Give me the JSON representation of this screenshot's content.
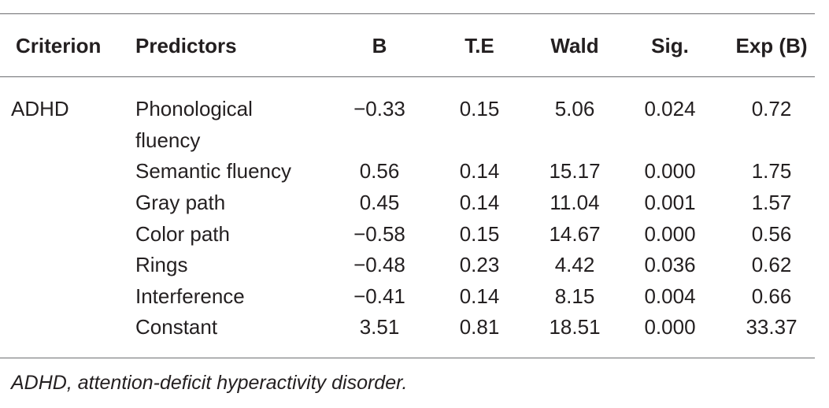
{
  "table": {
    "headers": {
      "criterion": "Criterion",
      "predictors": "Predictors",
      "b": "B",
      "te": "T.E",
      "wald": "Wald",
      "sig": "Sig.",
      "expb": "Exp (B)"
    },
    "criterion": "ADHD",
    "rows": [
      {
        "predictor_line1": "Phonological",
        "predictor_line2": "fluency",
        "b": "−0.33",
        "te": "0.15",
        "wald": "5.06",
        "sig": "0.024",
        "expb": "0.72"
      },
      {
        "predictor": "Semantic fluency",
        "b": "0.56",
        "te": "0.14",
        "wald": "15.17",
        "sig": "0.000",
        "expb": "1.75"
      },
      {
        "predictor": "Gray path",
        "b": "0.45",
        "te": "0.14",
        "wald": "11.04",
        "sig": "0.001",
        "expb": "1.57"
      },
      {
        "predictor": "Color path",
        "b": "−0.58",
        "te": "0.15",
        "wald": "14.67",
        "sig": "0.000",
        "expb": "0.56"
      },
      {
        "predictor": "Rings",
        "b": "−0.48",
        "te": "0.23",
        "wald": "4.42",
        "sig": "0.036",
        "expb": "0.62"
      },
      {
        "predictor": "Interference",
        "b": "−0.41",
        "te": "0.14",
        "wald": "8.15",
        "sig": "0.004",
        "expb": "0.66"
      },
      {
        "predictor": "Constant",
        "b": "3.51",
        "te": "0.81",
        "wald": "18.51",
        "sig": "0.000",
        "expb": "33.37"
      }
    ],
    "footnote": "ADHD, attention-deficit hyperactivity disorder."
  }
}
